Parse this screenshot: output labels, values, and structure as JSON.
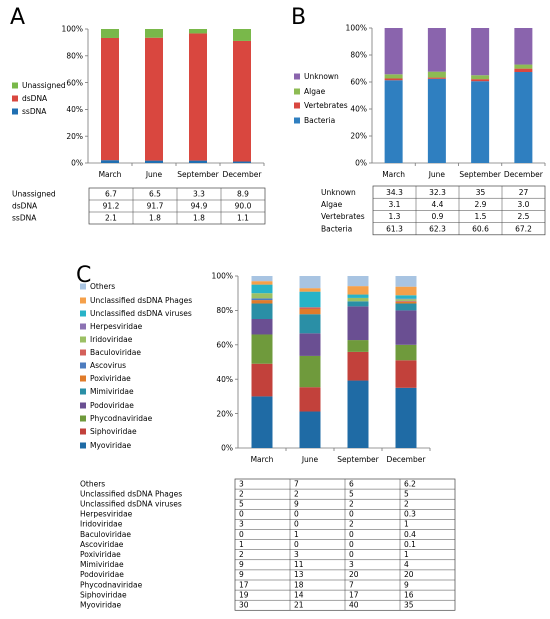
{
  "chart_data": [
    {
      "panel": "A",
      "type": "bar",
      "stacked": true,
      "percent": true,
      "categories": [
        "March",
        "June",
        "September",
        "December"
      ],
      "ylim": [
        0,
        100
      ],
      "yticks": [
        "0%",
        "20%",
        "40%",
        "60%",
        "80%",
        "100%"
      ],
      "grid": false,
      "legend_position": "left",
      "series": [
        {
          "name": "ssDNA",
          "color": "#1f6fb2",
          "values": [
            2.1,
            1.8,
            1.8,
            1.1
          ]
        },
        {
          "name": "dsDNA",
          "color": "#d9473f",
          "values": [
            91.2,
            91.7,
            94.9,
            90.0
          ]
        },
        {
          "name": "Unassigned",
          "color": "#79b84a",
          "values": [
            6.7,
            6.5,
            3.3,
            8.9
          ]
        }
      ],
      "table": {
        "rows": [
          "Unassigned",
          "dsDNA",
          "ssDNA"
        ],
        "cells": [
          [
            "6.7",
            "6.5",
            "3.3",
            "8.9"
          ],
          [
            "91.2",
            "91.7",
            "94.9",
            "90.0"
          ],
          [
            "2.1",
            "1.8",
            "1.8",
            "1.1"
          ]
        ]
      }
    },
    {
      "panel": "B",
      "type": "bar",
      "stacked": true,
      "percent": true,
      "categories": [
        "March",
        "June",
        "September",
        "December"
      ],
      "ylim": [
        0,
        100
      ],
      "yticks": [
        "0%",
        "20%",
        "40%",
        "60%",
        "80%",
        "100%"
      ],
      "grid": false,
      "legend_position": "left",
      "series": [
        {
          "name": "Bacteria",
          "color": "#2f7fc0",
          "values": [
            61.3,
            62.3,
            60.6,
            67.2
          ]
        },
        {
          "name": "Vertebrates",
          "color": "#d9473f",
          "values": [
            1.3,
            0.9,
            1.5,
            2.5
          ]
        },
        {
          "name": "Algae",
          "color": "#8dbb53",
          "values": [
            3.1,
            4.4,
            2.9,
            3.0
          ]
        },
        {
          "name": "Unknown",
          "color": "#8a64ad",
          "values": [
            34.3,
            32.3,
            35,
            27
          ]
        }
      ],
      "table": {
        "rows": [
          "Unknown",
          "Algae",
          "Vertebrates",
          "Bacteria"
        ],
        "cells": [
          [
            "34.3",
            "32.3",
            "35",
            "27"
          ],
          [
            "3.1",
            "4.4",
            "2.9",
            "3.0"
          ],
          [
            "1.3",
            "0.9",
            "1.5",
            "2.5"
          ],
          [
            "61.3",
            "62.3",
            "60.6",
            "67.2"
          ]
        ]
      }
    },
    {
      "panel": "C",
      "type": "bar",
      "stacked": true,
      "percent": true,
      "categories": [
        "March",
        "June",
        "September",
        "December"
      ],
      "ylim": [
        0,
        100
      ],
      "yticks": [
        "0%",
        "20%",
        "40%",
        "60%",
        "80%",
        "100%"
      ],
      "grid": false,
      "legend_position": "left",
      "series": [
        {
          "name": "Myoviridae",
          "color": "#1f6ba5",
          "values": [
            30,
            21,
            40,
            35
          ]
        },
        {
          "name": "Siphoviridae",
          "color": "#c2413b",
          "values": [
            19,
            14,
            17,
            16
          ]
        },
        {
          "name": "Phycodnaviridae",
          "color": "#6f9a3c",
          "values": [
            17,
            18,
            7,
            9
          ]
        },
        {
          "name": "Podoviridae",
          "color": "#6a4f92",
          "values": [
            9,
            13,
            20,
            20
          ]
        },
        {
          "name": "Mimiviridae",
          "color": "#2a8fa6",
          "values": [
            9,
            11,
            3,
            4
          ]
        },
        {
          "name": "Poxiviridae",
          "color": "#e07b2a",
          "values": [
            2,
            3,
            0,
            1
          ]
        },
        {
          "name": "Ascovirus",
          "color": "#4d7cbf",
          "values": [
            1,
            0,
            0,
            0.1
          ]
        },
        {
          "name": "Baculoviridae",
          "color": "#d4605a",
          "values": [
            0,
            1,
            0,
            0.4
          ]
        },
        {
          "name": "Iridoviridae",
          "color": "#9cc064",
          "values": [
            3,
            0,
            2,
            1
          ]
        },
        {
          "name": "Herpesviridae",
          "color": "#8c72b3",
          "values": [
            0,
            0,
            0,
            0.3
          ]
        },
        {
          "name": "Unclassified dsDNA viruses",
          "color": "#27b3c8",
          "values": [
            5,
            9,
            2,
            2
          ]
        },
        {
          "name": "Unclassified dsDNA Phages",
          "color": "#f5a04a",
          "values": [
            2,
            2,
            5,
            5
          ]
        },
        {
          "name": "Others",
          "color": "#a8c4e2",
          "values": [
            3,
            7,
            6,
            6.2
          ]
        }
      ],
      "table": {
        "rows": [
          "Others",
          "Unclassified dsDNA Phages",
          "Unclassified dsDNA viruses",
          "Herpesviridae",
          "Iridoviridae",
          "Baculoviridae",
          "Ascoviridae",
          "Poxiviridae",
          "Mimiviridae",
          "Podoviridae",
          "Phycodnaviridae",
          "Siphoviridae",
          "Myoviridae"
        ],
        "cells": [
          [
            "3",
            "7",
            "6",
            "6.2"
          ],
          [
            "2",
            "2",
            "5",
            "5"
          ],
          [
            "5",
            "9",
            "2",
            "2"
          ],
          [
            "0",
            "0",
            "0",
            "0.3"
          ],
          [
            "3",
            "0",
            "2",
            "1"
          ],
          [
            "0",
            "1",
            "0",
            "0.4"
          ],
          [
            "1",
            "0",
            "0",
            "0.1"
          ],
          [
            "2",
            "3",
            "0",
            "1"
          ],
          [
            "9",
            "11",
            "3",
            "4"
          ],
          [
            "9",
            "13",
            "20",
            "20"
          ],
          [
            "17",
            "18",
            "7",
            "9"
          ],
          [
            "19",
            "14",
            "17",
            "16"
          ],
          [
            "30",
            "21",
            "40",
            "35"
          ]
        ]
      }
    }
  ]
}
